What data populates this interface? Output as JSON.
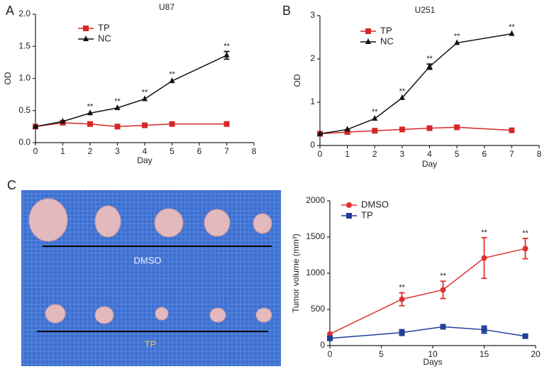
{
  "photo": {
    "panel": "C",
    "top_label": "DMSO",
    "bottom_label": "TP"
  },
  "chart_data": [
    {
      "type": "line",
      "panel": "A",
      "title": "U87",
      "x_label": "Day",
      "y_label": "OD",
      "x": [
        0,
        1,
        2,
        3,
        4,
        5,
        7
      ],
      "xlim": [
        0,
        8
      ],
      "xticks": [
        0,
        1,
        2,
        3,
        4,
        5,
        6,
        7,
        8
      ],
      "ylim": [
        0,
        2
      ],
      "yticks": [
        {
          "value": 0,
          "label": "0.0"
        },
        0.5,
        {
          "value": 1,
          "label": "1.0"
        },
        1.5,
        {
          "value": 2,
          "label": "2.0"
        }
      ],
      "legend": "upper left",
      "series": [
        {
          "name": "TP",
          "color": "#d62728",
          "marker": "square",
          "values": [
            0.25,
            0.31,
            0.29,
            0.25,
            0.27,
            0.29,
            0.29
          ]
        },
        {
          "name": "NC",
          "color": "#111111",
          "marker": "triangle",
          "values": [
            0.25,
            0.33,
            0.46,
            0.54,
            0.68,
            0.96,
            1.36
          ],
          "errors": [
            null,
            null,
            null,
            null,
            null,
            null,
            0.06
          ],
          "annotations": [
            null,
            null,
            "**",
            "**",
            "**",
            "**",
            "**"
          ]
        }
      ]
    },
    {
      "type": "line",
      "panel": "B",
      "title": "U251",
      "x_label": "Day",
      "y_label": "OD",
      "x": [
        0,
        1,
        2,
        3,
        4,
        5,
        7
      ],
      "xlim": [
        0,
        8
      ],
      "xticks": [
        0,
        1,
        2,
        3,
        4,
        5,
        6,
        7,
        8
      ],
      "ylim": [
        0,
        3
      ],
      "yticks": [
        0,
        1,
        2,
        3
      ],
      "legend": "upper left",
      "series": [
        {
          "name": "TP",
          "color": "#d62728",
          "marker": "square",
          "values": [
            0.27,
            0.31,
            0.34,
            0.37,
            0.4,
            0.42,
            0.35
          ]
        },
        {
          "name": "NC",
          "color": "#111111",
          "marker": "triangle",
          "values": [
            0.27,
            0.37,
            0.62,
            1.1,
            1.82,
            2.37,
            2.58
          ],
          "errors": [
            null,
            null,
            null,
            null,
            0.06,
            null,
            null
          ],
          "annotations": [
            null,
            null,
            "**",
            "**",
            "**",
            "**",
            "**"
          ]
        }
      ]
    },
    {
      "type": "line",
      "x_label": "Days",
      "y_label": "Tumor volume (mm³)",
      "x": [
        0,
        7,
        11,
        15,
        19
      ],
      "xlim": [
        0,
        20
      ],
      "xticks": [
        0,
        5,
        10,
        15,
        20
      ],
      "ylim": [
        0,
        2000
      ],
      "yticks": [
        0,
        500,
        1000,
        1500,
        2000
      ],
      "legend": "upper left",
      "series": [
        {
          "name": "DMSO",
          "color": "#e03030",
          "marker": "circle",
          "values": [
            160,
            640,
            770,
            1210,
            1340
          ],
          "errors": [
            null,
            90,
            120,
            280,
            140
          ],
          "annotations": [
            null,
            "**",
            "**",
            "**",
            "**"
          ]
        },
        {
          "name": "TP",
          "color": "#1f3f99",
          "marker": "square",
          "values": [
            100,
            180,
            260,
            220,
            130
          ],
          "errors": [
            null,
            40,
            30,
            50,
            20
          ]
        }
      ]
    }
  ]
}
